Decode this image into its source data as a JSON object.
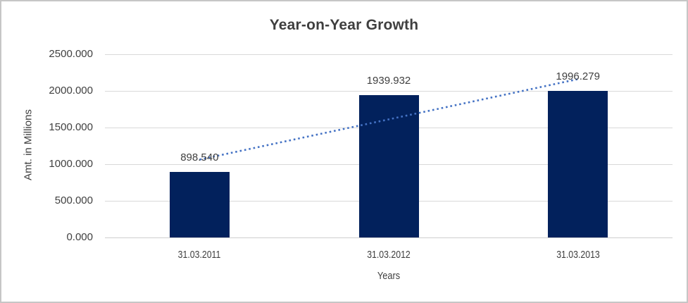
{
  "chart_data": {
    "type": "bar",
    "title": "Year-on-Year Growth",
    "xlabel": "Years",
    "ylabel": "Amt. in Millions",
    "categories": [
      "31.03.2011",
      "31.03.2012",
      "31.03.2013"
    ],
    "values": [
      898.54,
      1939.932,
      1996.279
    ],
    "data_labels": [
      "898.540",
      "1939.932",
      "1996.279"
    ],
    "ylim": [
      0,
      2500
    ],
    "ytick_labels": [
      "0.000",
      "500.000",
      "1000.000",
      "1500.000",
      "2000.000",
      "2500.000"
    ],
    "grid": true,
    "legend": "none",
    "bar_color": "#02215c",
    "gridline_color": "#d9d9d9",
    "axis_line_color": "#cfcfcf",
    "text_color": "#404040",
    "trendline": {
      "type": "linear",
      "style": "dotted",
      "color": "#4472c4"
    }
  }
}
